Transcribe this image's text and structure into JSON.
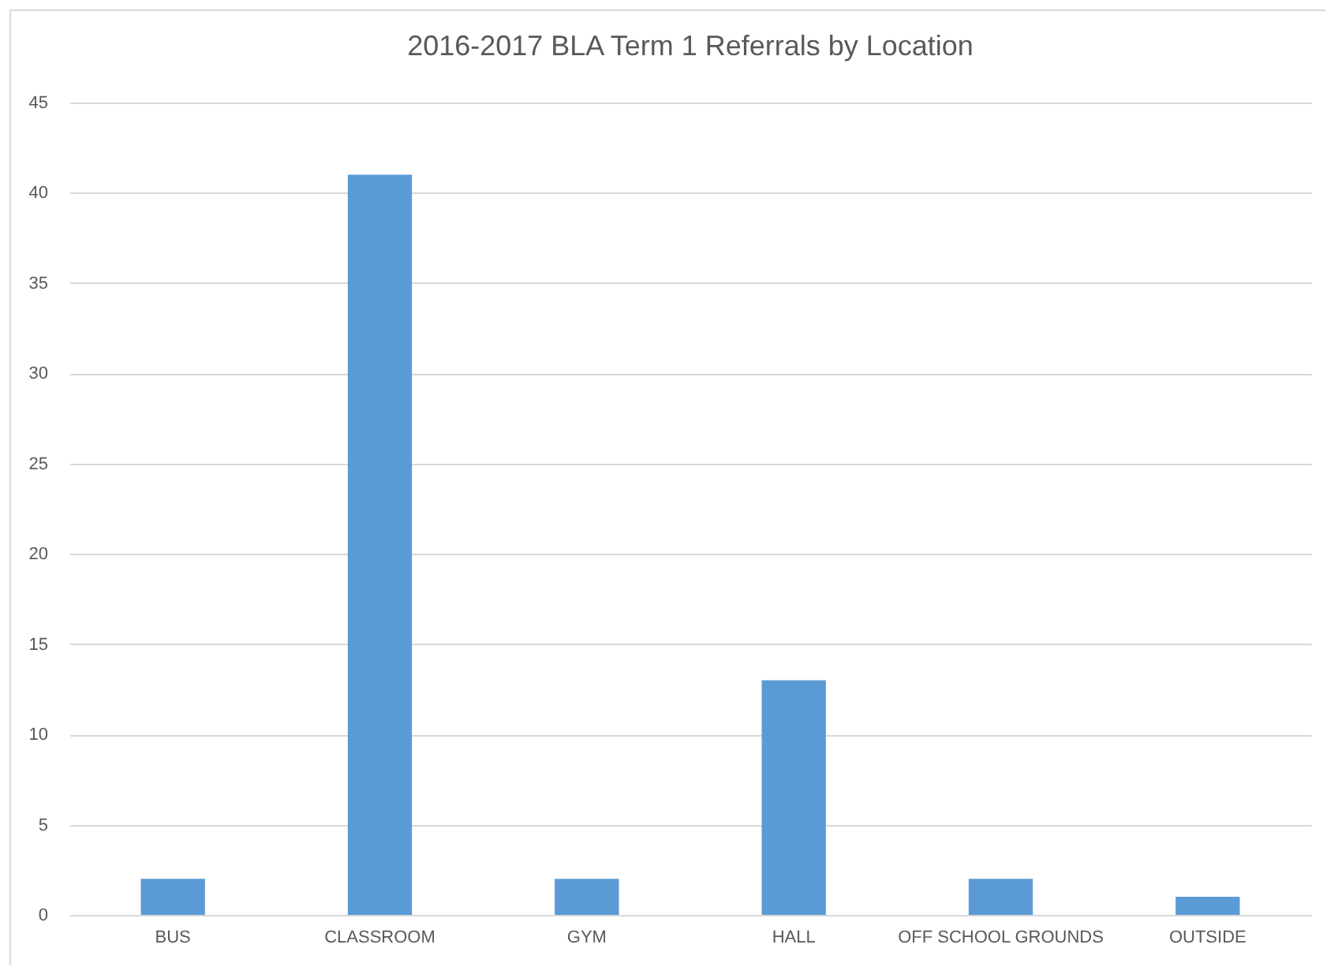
{
  "chart_data": {
    "type": "bar",
    "title": "2016-2017 BLA Term 1 Referrals by Location",
    "categories": [
      "BUS",
      "CLASSROOM",
      "GYM",
      "HALL",
      "OFF SCHOOL GROUNDS",
      "OUTSIDE"
    ],
    "values": [
      2,
      41,
      2,
      13,
      2,
      1
    ],
    "color": "#5b9bd5",
    "ylim": [
      0,
      45
    ],
    "yticks": [
      0,
      5,
      10,
      15,
      20,
      25,
      30,
      35,
      40,
      45
    ],
    "grid": "y"
  }
}
